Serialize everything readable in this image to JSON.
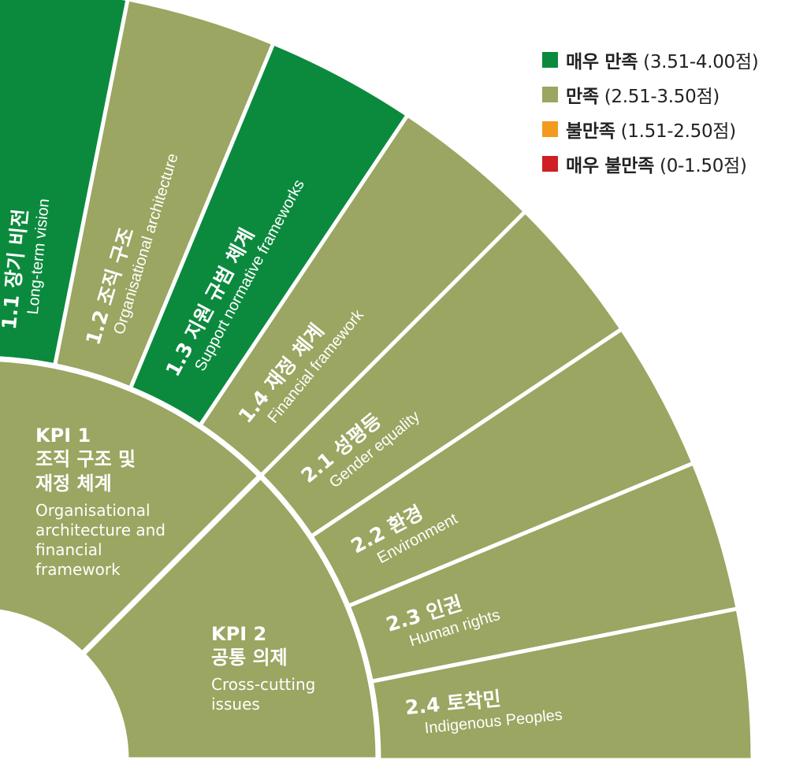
{
  "colors": {
    "very_satisfied": "#0b8a3e",
    "satisfied": "#9aa661",
    "dissatisfied": "#f39a1e",
    "very_dissatisfied": "#cf1f25",
    "divider": "#ffffff",
    "text_on_sector": "#ffffff"
  },
  "legend": [
    {
      "rating": "very_satisfied",
      "label": "매우 만족",
      "range": "(3.51-4.00점)"
    },
    {
      "rating": "satisfied",
      "label": "만족",
      "range": "(2.51-3.50점)"
    },
    {
      "rating": "dissatisfied",
      "label": "불만족",
      "range": "(1.51-2.50점)"
    },
    {
      "rating": "very_dissatisfied",
      "label": "매우 불만족",
      "range": "(0-1.50점)"
    }
  ],
  "kpis": [
    {
      "code": "KPI 1",
      "title": "조직 구조 및\n재정 체계",
      "en": "Organisational\narchitecture and\nfinancial\nframework",
      "rating": "satisfied"
    },
    {
      "code": "KPI 2",
      "title": "공통 의제",
      "en": "Cross-cutting\nissues",
      "rating": "satisfied"
    }
  ],
  "indicators": [
    {
      "code": "1.1",
      "ko": "장기 비전",
      "en": "Long-term vision",
      "kpi": "KPI 1",
      "rating": "very_satisfied"
    },
    {
      "code": "1.2",
      "ko": "조직 구조",
      "en": "Organisational architecture",
      "kpi": "KPI 1",
      "rating": "satisfied"
    },
    {
      "code": "1.3",
      "ko": "지원 규범 체계",
      "en": "Support normative frameworks",
      "kpi": "KPI 1",
      "rating": "very_satisfied"
    },
    {
      "code": "1.4",
      "ko": "재정 체계",
      "en": "Financial framework",
      "kpi": "KPI 1",
      "rating": "satisfied"
    },
    {
      "code": "2.1",
      "ko": "성평등",
      "en": "Gender equality",
      "kpi": "KPI 2",
      "rating": "satisfied"
    },
    {
      "code": "2.2",
      "ko": "환경",
      "en": "Environment",
      "kpi": "KPI 2",
      "rating": "satisfied"
    },
    {
      "code": "2.3",
      "ko": "인권",
      "en": "Human rights",
      "kpi": "KPI 2",
      "rating": "satisfied"
    },
    {
      "code": "2.4",
      "ko": "토착민",
      "en": "Indigenous Peoples",
      "kpi": "KPI 2",
      "rating": "satisfied"
    }
  ]
}
